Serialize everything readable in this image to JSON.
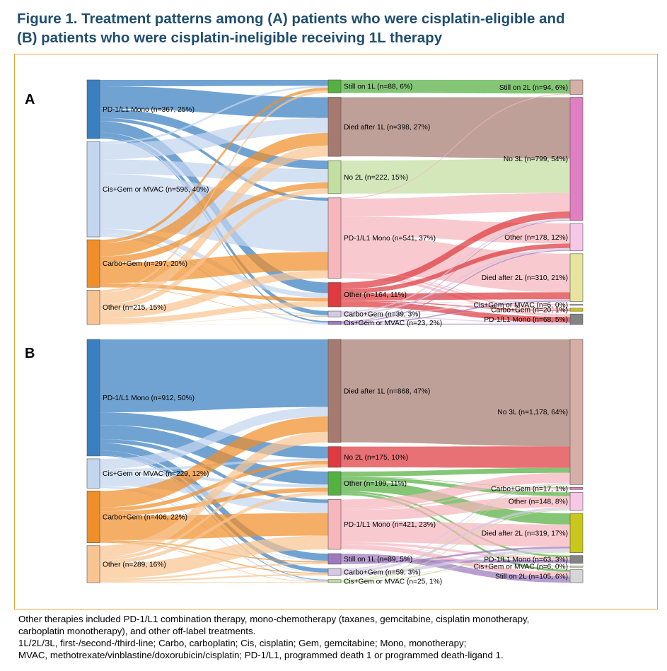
{
  "title_line1": "Figure 1. Treatment patterns among (A) patients who were cisplatin-eligible and",
  "title_line2": "(B) patients who were cisplatin-ineligible receiving 1L therapy",
  "footnotes": [
    "Other therapies included PD-1/L1 combination therapy, mono-chemotherapy (taxanes, gemcitabine, cisplatin monotherapy,",
    "carboplatin monotherapy), and other off-label treatments.",
    "1L/2L/3L, first-/second-/third-line; Carbo, carboplatin; Cis, cisplatin; Gem, gemcitabine; Mono, monotherapy;",
    "MVAC, methotrexate/vinblastine/doxorubicin/cisplatin; PD-1/L1, programmed death 1 or programmed death-ligand 1."
  ],
  "colors": {
    "blue": "#3a80c0",
    "lightblue": "#c3d6ee",
    "orange": "#f08f2a",
    "peach": "#f8c592",
    "green": "#54b041",
    "brown": "#a57b71",
    "lightgreen": "#c2dea1",
    "pink": "#f5b6bc",
    "red": "#de3a3f",
    "lilac": "#d5c8e3",
    "purple": "#9d79bd",
    "rosebrown": "#d5aea6",
    "magenta": "#e07fc2",
    "lightpink": "#f6c7e6",
    "paleyellow": "#e6e49e",
    "greybox": "#c3c3c3",
    "yellow": "#cac71c",
    "darkgrey": "#838383",
    "lightgrey": "#d6d6d6"
  },
  "panels": [
    {
      "label": "A",
      "nodes": [
        {
          "id": "a_pd1",
          "label": "PD-1/L1 Mono (n=367, 25%)",
          "col": 0,
          "value": 367,
          "color": "blue"
        },
        {
          "id": "a_cis",
          "label": "Cis+Gem or MVAC (n=596, 40%)",
          "col": 0,
          "value": 596,
          "color": "lightblue"
        },
        {
          "id": "a_carbo",
          "label": "Carbo+Gem (n=297, 20%)",
          "col": 0,
          "value": 297,
          "color": "orange"
        },
        {
          "id": "a_other",
          "label": "Other (n=215, 15%)",
          "col": 0,
          "value": 215,
          "color": "peach"
        },
        {
          "id": "a_still1",
          "label": "Still on 1L (n=88, 6%)",
          "col": 1,
          "value": 88,
          "color": "green"
        },
        {
          "id": "a_died1",
          "label": "Died after 1L (n=398, 27%)",
          "col": 1,
          "value": 398,
          "color": "brown"
        },
        {
          "id": "a_no2",
          "label": "No 2L (n=222, 15%)",
          "col": 1,
          "value": 222,
          "color": "lightgreen"
        },
        {
          "id": "a_pd2",
          "label": "PD-1/L1 Mono (n=541, 37%)",
          "col": 1,
          "value": 541,
          "color": "pink"
        },
        {
          "id": "a_oth2",
          "label": "Other (n=164, 11%)",
          "col": 1,
          "value": 164,
          "color": "red"
        },
        {
          "id": "a_carbo2",
          "label": "Carbo+Gem (n=39, 3%)",
          "col": 1,
          "value": 39,
          "color": "lilac"
        },
        {
          "id": "a_cis2",
          "label": "Cis+Gem or MVAC (n=23, 2%)",
          "col": 1,
          "value": 23,
          "color": "purple"
        },
        {
          "id": "a_still2",
          "label": "Still on 2L (n=94, 6%)",
          "col": 2,
          "value": 94,
          "color": "rosebrown"
        },
        {
          "id": "a_no3",
          "label": "No 3L (n=799, 54%)",
          "col": 2,
          "value": 799,
          "color": "magenta"
        },
        {
          "id": "a_oth3",
          "label": "Other (n=178, 12%)",
          "col": 2,
          "value": 178,
          "color": "lightpink"
        },
        {
          "id": "a_died2",
          "label": "Died after 2L (n=310, 21%)",
          "col": 2,
          "value": 310,
          "color": "paleyellow"
        },
        {
          "id": "a_cis3",
          "label": "Cis+Gem or MVAC (n=6, 0%)",
          "col": 2,
          "value": 6,
          "color": "greybox"
        },
        {
          "id": "a_carbo3",
          "label": "Carbo+Gem (n=20, 1%)",
          "col": 2,
          "value": 20,
          "color": "yellow"
        },
        {
          "id": "a_pd3",
          "label": "PD-1/L1 Mono (n=68, 5%)",
          "col": 2,
          "value": 68,
          "color": "darkgrey"
        }
      ],
      "links": [
        {
          "source": "a_pd1",
          "target": "a_still1",
          "value": 40
        },
        {
          "source": "a_pd1",
          "target": "a_died1",
          "value": 140
        },
        {
          "source": "a_pd1",
          "target": "a_no2",
          "value": 57
        },
        {
          "source": "a_pd1",
          "target": "a_pd2",
          "value": 20
        },
        {
          "source": "a_pd1",
          "target": "a_oth2",
          "value": 72
        },
        {
          "source": "a_pd1",
          "target": "a_carbo2",
          "value": 28
        },
        {
          "source": "a_pd1",
          "target": "a_cis2",
          "value": 10
        },
        {
          "source": "a_cis",
          "target": "a_still1",
          "value": 12
        },
        {
          "source": "a_cis",
          "target": "a_died1",
          "value": 100
        },
        {
          "source": "a_cis",
          "target": "a_no2",
          "value": 90
        },
        {
          "source": "a_cis",
          "target": "a_pd2",
          "value": 344
        },
        {
          "source": "a_cis",
          "target": "a_oth2",
          "value": 32
        },
        {
          "source": "a_cis",
          "target": "a_carbo2",
          "value": 6
        },
        {
          "source": "a_cis",
          "target": "a_cis2",
          "value": 12
        },
        {
          "source": "a_carbo",
          "target": "a_still1",
          "value": 20
        },
        {
          "source": "a_carbo",
          "target": "a_died1",
          "value": 85
        },
        {
          "source": "a_carbo",
          "target": "a_no2",
          "value": 40
        },
        {
          "source": "a_carbo",
          "target": "a_pd2",
          "value": 125
        },
        {
          "source": "a_carbo",
          "target": "a_oth2",
          "value": 24
        },
        {
          "source": "a_carbo",
          "target": "a_carbo2",
          "value": 3
        },
        {
          "source": "a_other",
          "target": "a_still1",
          "value": 16
        },
        {
          "source": "a_other",
          "target": "a_died1",
          "value": 73
        },
        {
          "source": "a_other",
          "target": "a_no2",
          "value": 35
        },
        {
          "source": "a_other",
          "target": "a_pd2",
          "value": 52
        },
        {
          "source": "a_other",
          "target": "a_oth2",
          "value": 36
        },
        {
          "source": "a_other",
          "target": "a_carbo2",
          "value": 2
        },
        {
          "source": "a_other",
          "target": "a_cis2",
          "value": 1
        },
        {
          "source": "a_still1",
          "target": "a_still2",
          "value": 88
        },
        {
          "source": "a_died1",
          "target": "a_no3",
          "value": 398
        },
        {
          "source": "a_no2",
          "target": "a_no3",
          "value": 222
        },
        {
          "source": "a_pd2",
          "target": "a_still2",
          "value": 6
        },
        {
          "source": "a_pd2",
          "target": "a_no3",
          "value": 120
        },
        {
          "source": "a_pd2",
          "target": "a_oth3",
          "value": 130
        },
        {
          "source": "a_pd2",
          "target": "a_died2",
          "value": 250
        },
        {
          "source": "a_pd2",
          "target": "a_cis3",
          "value": 5
        },
        {
          "source": "a_pd2",
          "target": "a_carbo3",
          "value": 12
        },
        {
          "source": "a_pd2",
          "target": "a_pd3",
          "value": 18
        },
        {
          "source": "a_oth2",
          "target": "a_no3",
          "value": 45
        },
        {
          "source": "a_oth2",
          "target": "a_oth3",
          "value": 30
        },
        {
          "source": "a_oth2",
          "target": "a_died2",
          "value": 45
        },
        {
          "source": "a_oth2",
          "target": "a_cis3",
          "value": 1
        },
        {
          "source": "a_oth2",
          "target": "a_carbo3",
          "value": 6
        },
        {
          "source": "a_oth2",
          "target": "a_pd3",
          "value": 37
        },
        {
          "source": "a_carbo2",
          "target": "a_no3",
          "value": 10
        },
        {
          "source": "a_carbo2",
          "target": "a_oth3",
          "value": 12
        },
        {
          "source": "a_carbo2",
          "target": "a_died2",
          "value": 8
        },
        {
          "source": "a_carbo2",
          "target": "a_carbo3",
          "value": 2
        },
        {
          "source": "a_carbo2",
          "target": "a_pd3",
          "value": 7
        },
        {
          "source": "a_cis2",
          "target": "a_no3",
          "value": 4
        },
        {
          "source": "a_cis2",
          "target": "a_oth3",
          "value": 6
        },
        {
          "source": "a_cis2",
          "target": "a_died2",
          "value": 7
        },
        {
          "source": "a_cis2",
          "target": "a_pd3",
          "value": 6
        }
      ]
    },
    {
      "label": "B",
      "nodes": [
        {
          "id": "b_pd1",
          "label": "PD-1/L1 Mono (n=912, 50%)",
          "col": 0,
          "value": 912,
          "color": "blue"
        },
        {
          "id": "b_cis",
          "label": "Cis+Gem or MVAC (n=229, 12%)",
          "col": 0,
          "value": 229,
          "color": "lightblue"
        },
        {
          "id": "b_carbo",
          "label": "Carbo+Gem (n=406, 22%)",
          "col": 0,
          "value": 406,
          "color": "orange"
        },
        {
          "id": "b_other",
          "label": "Other (n=289, 16%)",
          "col": 0,
          "value": 289,
          "color": "peach"
        },
        {
          "id": "b_died1",
          "label": "Died after 1L (n=868, 47%)",
          "col": 1,
          "value": 868,
          "color": "brown"
        },
        {
          "id": "b_no2",
          "label": "No 2L (n=175, 10%)",
          "col": 1,
          "value": 175,
          "color": "red"
        },
        {
          "id": "b_oth2",
          "label": "Other (n=199, 11%)",
          "col": 1,
          "value": 199,
          "color": "green"
        },
        {
          "id": "b_pd2",
          "label": "PD-1/L1 Mono (n=421, 23%)",
          "col": 1,
          "value": 421,
          "color": "pink"
        },
        {
          "id": "b_still1",
          "label": "Still on 1L (n=89, 5%)",
          "col": 1,
          "value": 89,
          "color": "purple"
        },
        {
          "id": "b_carbo2",
          "label": "Carbo+Gem (n=59, 3%)",
          "col": 1,
          "value": 59,
          "color": "lilac"
        },
        {
          "id": "b_cis2",
          "label": "Cis+Gem or MVAC (n=25, 1%)",
          "col": 1,
          "value": 25,
          "color": "lightgreen"
        },
        {
          "id": "b_no3",
          "label": "No 3L (n=1,178, 64%)",
          "col": 2,
          "value": 1178,
          "color": "rosebrown"
        },
        {
          "id": "b_carbo3",
          "label": "Carbo+Gem (n=17, 1%)",
          "col": 2,
          "value": 17,
          "color": "magenta"
        },
        {
          "id": "b_oth3",
          "label": "Other (n=148, 8%)",
          "col": 2,
          "value": 148,
          "color": "lightpink"
        },
        {
          "id": "b_died2",
          "label": "Died after 2L (n=319, 17%)",
          "col": 2,
          "value": 319,
          "color": "yellow"
        },
        {
          "id": "b_pd3",
          "label": "PD-1/L1 Mono (n=63, 3%)",
          "col": 2,
          "value": 63,
          "color": "darkgrey"
        },
        {
          "id": "b_cis3",
          "label": "Cis+Gem or MVAC (n=6, 0%)",
          "col": 2,
          "value": 6,
          "color": "paleyellow"
        },
        {
          "id": "b_still2",
          "label": "Still on 2L (n=105, 6%)",
          "col": 2,
          "value": 105,
          "color": "lightgrey"
        }
      ],
      "links": [
        {
          "source": "b_pd1",
          "target": "b_died1",
          "value": 570
        },
        {
          "source": "b_pd1",
          "target": "b_no2",
          "value": 100
        },
        {
          "source": "b_pd1",
          "target": "b_oth2",
          "value": 110
        },
        {
          "source": "b_pd1",
          "target": "b_pd2",
          "value": 30
        },
        {
          "source": "b_pd1",
          "target": "b_still1",
          "value": 60
        },
        {
          "source": "b_pd1",
          "target": "b_carbo2",
          "value": 35
        },
        {
          "source": "b_pd1",
          "target": "b_cis2",
          "value": 7
        },
        {
          "source": "b_cis",
          "target": "b_died1",
          "value": 80
        },
        {
          "source": "b_cis",
          "target": "b_no2",
          "value": 20
        },
        {
          "source": "b_cis",
          "target": "b_oth2",
          "value": 25
        },
        {
          "source": "b_cis",
          "target": "b_pd2",
          "value": 85
        },
        {
          "source": "b_cis",
          "target": "b_still1",
          "value": 5
        },
        {
          "source": "b_cis",
          "target": "b_carbo2",
          "value": 4
        },
        {
          "source": "b_cis",
          "target": "b_cis2",
          "value": 10
        },
        {
          "source": "b_carbo",
          "target": "b_died1",
          "value": 130
        },
        {
          "source": "b_carbo",
          "target": "b_no2",
          "value": 30
        },
        {
          "source": "b_carbo",
          "target": "b_oth2",
          "value": 35
        },
        {
          "source": "b_carbo",
          "target": "b_pd2",
          "value": 190
        },
        {
          "source": "b_carbo",
          "target": "b_still1",
          "value": 10
        },
        {
          "source": "b_carbo",
          "target": "b_carbo2",
          "value": 8
        },
        {
          "source": "b_carbo",
          "target": "b_cis2",
          "value": 3
        },
        {
          "source": "b_other",
          "target": "b_died1",
          "value": 88
        },
        {
          "source": "b_other",
          "target": "b_no2",
          "value": 25
        },
        {
          "source": "b_other",
          "target": "b_oth2",
          "value": 29
        },
        {
          "source": "b_other",
          "target": "b_pd2",
          "value": 116
        },
        {
          "source": "b_other",
          "target": "b_still1",
          "value": 14
        },
        {
          "source": "b_other",
          "target": "b_carbo2",
          "value": 12
        },
        {
          "source": "b_other",
          "target": "b_cis2",
          "value": 5
        },
        {
          "source": "b_died1",
          "target": "b_no3",
          "value": 868
        },
        {
          "source": "b_no2",
          "target": "b_no3",
          "value": 175
        },
        {
          "source": "b_oth2",
          "target": "b_no3",
          "value": 40
        },
        {
          "source": "b_oth2",
          "target": "b_carbo3",
          "value": 4
        },
        {
          "source": "b_oth2",
          "target": "b_oth3",
          "value": 30
        },
        {
          "source": "b_oth2",
          "target": "b_died2",
          "value": 90
        },
        {
          "source": "b_oth2",
          "target": "b_pd3",
          "value": 15
        },
        {
          "source": "b_oth2",
          "target": "b_cis3",
          "value": 2
        },
        {
          "source": "b_oth2",
          "target": "b_still2",
          "value": 18
        },
        {
          "source": "b_pd2",
          "target": "b_no3",
          "value": 80
        },
        {
          "source": "b_pd2",
          "target": "b_carbo3",
          "value": 10
        },
        {
          "source": "b_pd2",
          "target": "b_oth3",
          "value": 90
        },
        {
          "source": "b_pd2",
          "target": "b_died2",
          "value": 180
        },
        {
          "source": "b_pd2",
          "target": "b_pd3",
          "value": 20
        },
        {
          "source": "b_pd2",
          "target": "b_cis3",
          "value": 3
        },
        {
          "source": "b_pd2",
          "target": "b_still2",
          "value": 38
        },
        {
          "source": "b_still1",
          "target": "b_still2",
          "value": 49
        },
        {
          "source": "b_still1",
          "target": "b_pd3",
          "value": 25
        },
        {
          "source": "b_still1",
          "target": "b_died2",
          "value": 15
        },
        {
          "source": "b_carbo2",
          "target": "b_no3",
          "value": 10
        },
        {
          "source": "b_carbo2",
          "target": "b_oth3",
          "value": 20
        },
        {
          "source": "b_carbo2",
          "target": "b_died2",
          "value": 25
        },
        {
          "source": "b_carbo2",
          "target": "b_pd3",
          "value": 3
        },
        {
          "source": "b_carbo2",
          "target": "b_cis3",
          "value": 1
        },
        {
          "source": "b_cis2",
          "target": "b_no3",
          "value": 5
        },
        {
          "source": "b_cis2",
          "target": "b_carbo3",
          "value": 3
        },
        {
          "source": "b_cis2",
          "target": "b_oth3",
          "value": 8
        },
        {
          "source": "b_cis2",
          "target": "b_died2",
          "value": 9
        }
      ]
    }
  ]
}
